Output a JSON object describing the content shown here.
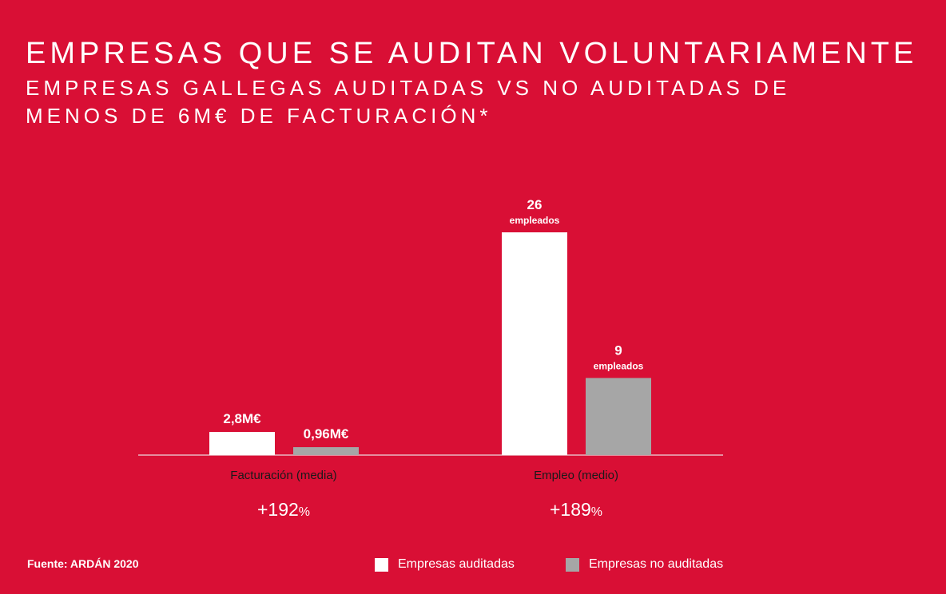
{
  "header": {
    "title": "EMPRESAS QUE SE AUDITAN VOLUNTARIAMENTE",
    "subtitle": "EMPRESAS GALLEGAS AUDITADAS VS NO AUDITADAS DE MENOS DE 6M€ DE FACTURACIÓN*"
  },
  "source": "Fuente: ARDÁN 2020",
  "colors": {
    "background": "#d90f35",
    "auditadas": "#ffffff",
    "no_auditadas": "#a6a6a6",
    "category_text": "#1a1a1a"
  },
  "chart_data": {
    "type": "bar",
    "title": "EMPRESAS QUE SE AUDITAN VOLUNTARIAMENTE",
    "subtitle": "EMPRESAS GALLEGAS AUDITADAS VS NO AUDITADAS DE MENOS DE 6M€ DE FACTURACIÓN*",
    "categories": [
      "Facturación (media)",
      "Empleo (medio)"
    ],
    "series": [
      {
        "name": "Empresas auditadas",
        "values": [
          2.8,
          26
        ],
        "labels": [
          "2,8M€",
          "26"
        ],
        "sublabels": [
          "",
          "empleados"
        ]
      },
      {
        "name": "Empresas no auditadas",
        "values": [
          0.96,
          9
        ],
        "labels": [
          "0,96M€",
          "9"
        ],
        "sublabels": [
          "",
          "empleados"
        ]
      }
    ],
    "units": [
      "M€",
      "empleados"
    ],
    "differences": [
      {
        "number": "+192",
        "symbol": "%"
      },
      {
        "number": "+189",
        "symbol": "%"
      }
    ],
    "grid": false,
    "legend_position": "bottom"
  }
}
